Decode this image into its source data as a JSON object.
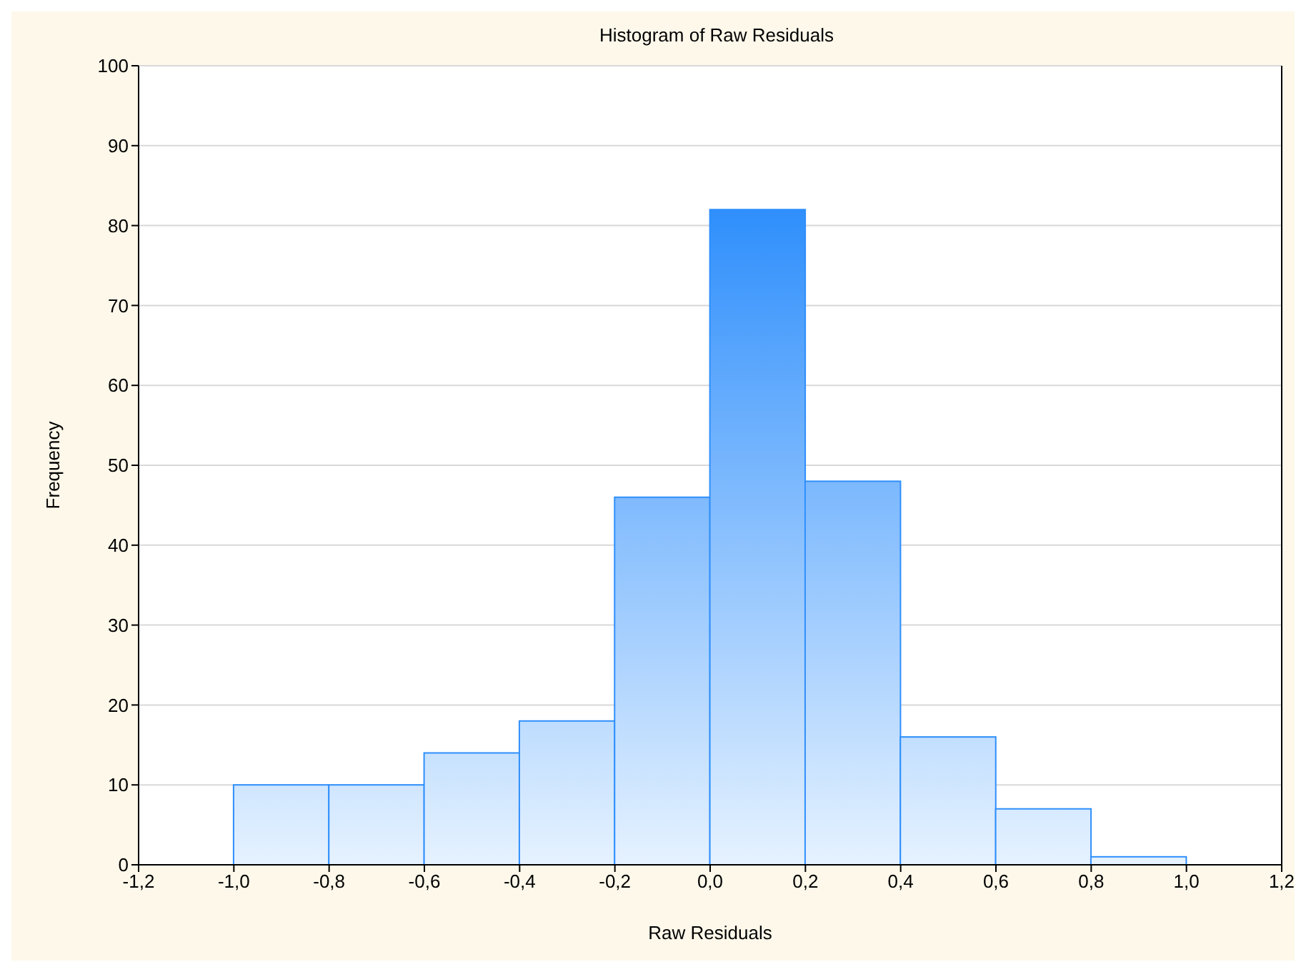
{
  "chart_data": {
    "type": "histogram",
    "title": "Histogram of Raw Residuals",
    "xlabel": "Raw Residuals",
    "ylabel": "Frequency",
    "bins": [
      -1.0,
      -0.8,
      -0.6,
      -0.4,
      -0.2,
      0.0,
      0.2,
      0.4,
      0.6,
      0.8,
      1.0
    ],
    "values": [
      10,
      10,
      14,
      18,
      46,
      82,
      48,
      16,
      7,
      1
    ],
    "color": "#2f8ffc",
    "xlim": [
      -1.2,
      1.2
    ],
    "xticks": [
      {
        "value": -1.2,
        "label": "-1,2"
      },
      {
        "value": -1.0,
        "label": "-1,0"
      },
      {
        "value": -0.8,
        "label": "-0,8"
      },
      {
        "value": -0.6,
        "label": "-0,6"
      },
      {
        "value": -0.4,
        "label": "-0,4"
      },
      {
        "value": -0.2,
        "label": "-0,2"
      },
      {
        "value": 0.0,
        "label": "0,0"
      },
      {
        "value": 0.2,
        "label": "0,2"
      },
      {
        "value": 0.4,
        "label": "0,4"
      },
      {
        "value": 0.6,
        "label": "0,6"
      },
      {
        "value": 0.8,
        "label": "0,8"
      },
      {
        "value": 1.0,
        "label": "1,0"
      },
      {
        "value": 1.2,
        "label": "1,2"
      }
    ],
    "ylim": [
      0,
      100
    ],
    "yticks": [
      0,
      10,
      20,
      30,
      40,
      50,
      60,
      70,
      80,
      90,
      100
    ],
    "grid": "y"
  }
}
